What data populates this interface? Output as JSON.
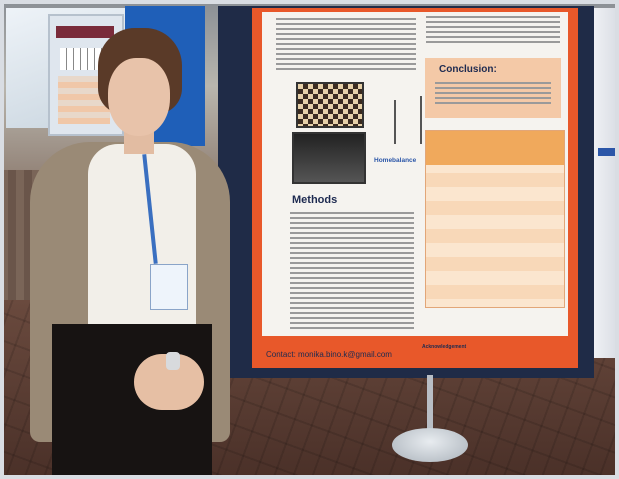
{
  "scene": {
    "type": "photograph",
    "subject": "woman standing next to a scientific poster"
  },
  "poster": {
    "section_heading": "Methods",
    "conclusion_heading": "Conclusion:",
    "product_label": "Homebalance",
    "contact_label": "Contact:",
    "contact_email": "monika.bino.k@gmail.com",
    "acknowledgement_label": "Acknowledgement"
  },
  "colors": {
    "poster_border": "#e8582a",
    "board": "#1f2b47",
    "heading": "#1d2a50",
    "table_header": "#f0a95c"
  }
}
